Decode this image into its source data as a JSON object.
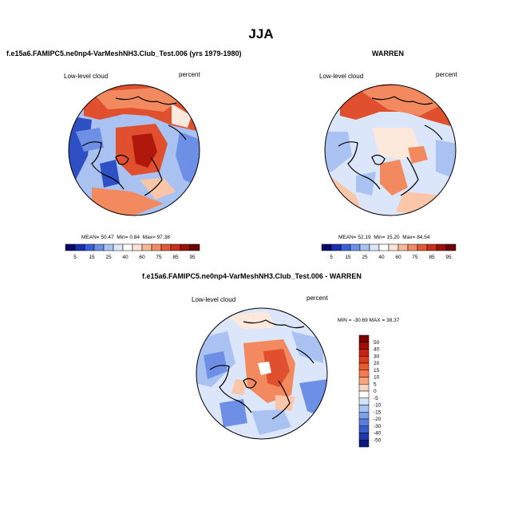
{
  "main_title": "JJA",
  "panels": [
    {
      "title": "f.e15a6.FAMIPC5.ne0np4-VarMeshNH3.Club_Test.006 (yrs 1979-1980)",
      "left_label": "Low-level cloud",
      "right_label": "percent",
      "stats": {
        "mean_label": "MEAN=",
        "mean": "50.47",
        "min_label": "Min=",
        "min": "0.84",
        "max_label": "Max=",
        "max": "97.38"
      }
    },
    {
      "title": "WARREN",
      "left_label": "Low-level cloud",
      "right_label": "percent",
      "stats": {
        "mean_label": "MEAN=",
        "mean": "52.19",
        "min_label": "Min=",
        "min": "15.20",
        "max_label": "Max=",
        "max": "84.54"
      }
    },
    {
      "title": "f.e15a6.FAMIPC5.ne0np4-VarMeshNH3.Club_Test.006 - WARREN",
      "left_label": "Low-level cloud",
      "right_label": "percent",
      "minmax_text": "MIN = -30.69 MAX = 38.37"
    }
  ],
  "horizontal_colorbar": {
    "labels": [
      "5",
      "15",
      "25",
      "40",
      "60",
      "75",
      "85",
      "95"
    ],
    "colors": [
      "#08086b",
      "#1a2fb0",
      "#3a5fd6",
      "#6d8fe6",
      "#a9c2f2",
      "#dbe6fb",
      "#ffffff",
      "#fde3d4",
      "#f7b89a",
      "#ef8c66",
      "#e05a38",
      "#c6311d",
      "#9c1208",
      "#6b0404"
    ]
  },
  "vertical_colorbar": {
    "labels": [
      "50",
      "40",
      "30",
      "20",
      "15",
      "10",
      "5",
      "0",
      "-5",
      "-10",
      "-15",
      "-20",
      "-30",
      "-40",
      "-50"
    ],
    "colors": [
      "#7a0000",
      "#a30d05",
      "#c4230f",
      "#dc3c1f",
      "#ec5a34",
      "#f37d52",
      "#f9a57c",
      "#fdd3be",
      "#ffffff",
      "#d6e4fb",
      "#a9c3f2",
      "#7f9fe6",
      "#5a7fdb",
      "#3a5dcc",
      "#2238a8",
      "#0c1a80"
    ]
  },
  "map_colors": {
    "deep_red": "#b0180c",
    "red": "#e0502e",
    "orange": "#f38a5f",
    "light_orange": "#fbc6a8",
    "pale": "#fde8dc",
    "white": "#ffffff",
    "pale_blue": "#dbe6fb",
    "light_blue": "#a9c2f2",
    "blue": "#6d8fe6",
    "deep_blue": "#2f4fc4"
  }
}
